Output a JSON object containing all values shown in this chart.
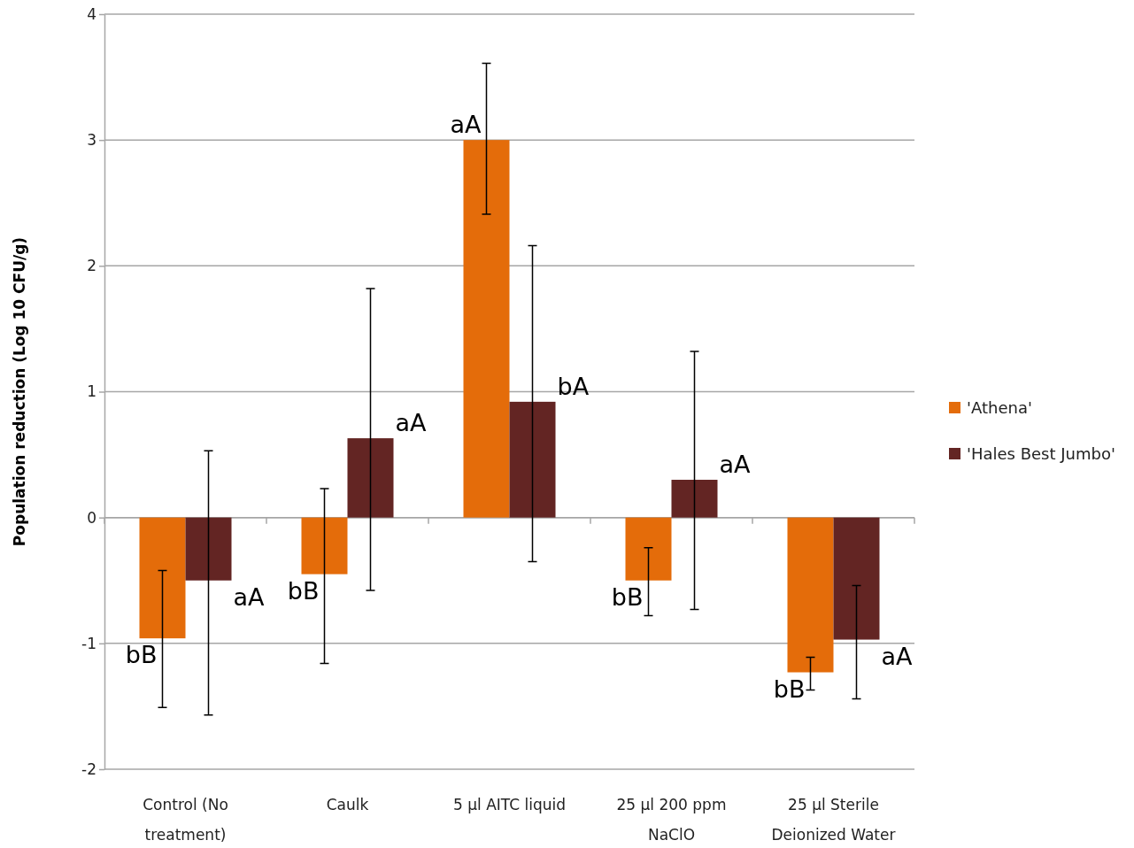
{
  "chart_data": {
    "type": "bar",
    "ylabel": "Population reduction (Log 10 CFU/g)",
    "categories": [
      "Control (No treatment)",
      "Caulk",
      "5 µl AITC liquid",
      "25 µl 200 ppm NaClO",
      "25 µl Sterile Deionized Water"
    ],
    "series": [
      {
        "name": "'Athena'",
        "color": "#e46c0a",
        "values": [
          -0.96,
          -0.45,
          3.0,
          -0.5,
          -1.23
        ],
        "errors": [
          [
            -1.51,
            -0.42
          ],
          [
            -1.16,
            0.23
          ],
          [
            2.41,
            3.61
          ],
          [
            -0.78,
            -0.24
          ],
          [
            -1.37,
            -1.11
          ]
        ]
      },
      {
        "name": "'Hales Best Jumbo'",
        "color": "#632523",
        "values": [
          -0.5,
          0.63,
          0.92,
          0.3,
          -0.97
        ],
        "errors": [
          [
            -1.57,
            0.53
          ],
          [
            -0.58,
            1.82
          ],
          [
            -0.35,
            2.16
          ],
          [
            -0.73,
            1.32
          ],
          [
            -1.44,
            -0.54
          ]
        ]
      }
    ],
    "annotations": [
      "bB",
      "aA",
      "bB",
      "aA",
      "aA",
      "bA",
      "bB",
      "aA",
      "bB",
      "aA"
    ],
    "ylim": [
      -2,
      4
    ],
    "yticks": [
      -2,
      -1,
      0,
      1,
      2,
      3,
      4
    ],
    "grid": "y",
    "legend": "right"
  }
}
